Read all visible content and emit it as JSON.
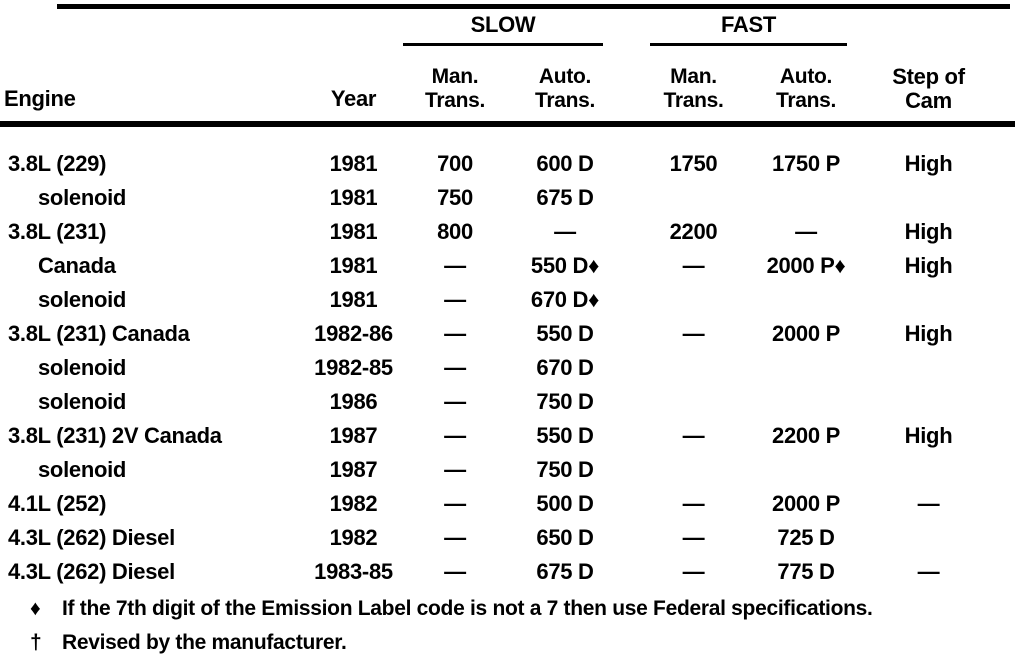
{
  "table": {
    "group_headers": {
      "slow": "SLOW",
      "fast": "FAST"
    },
    "columns": {
      "engine": "Engine",
      "year": "Year",
      "man_line1": "Man.",
      "man_line2": "Trans.",
      "auto_line1": "Auto.",
      "auto_line2": "Trans.",
      "cam_line1": "Step of",
      "cam_line2": "Cam"
    },
    "rows": [
      {
        "engine": "3.8L (229)",
        "indent": 0,
        "year": "1981",
        "slow_man": "700",
        "slow_auto": "600 D",
        "fast_man": "1750",
        "fast_auto": "1750 P",
        "cam": "High"
      },
      {
        "engine": "solenoid",
        "indent": 1,
        "year": "1981",
        "slow_man": "750",
        "slow_auto": "675 D",
        "fast_man": "",
        "fast_auto": "",
        "cam": ""
      },
      {
        "engine": "3.8L (231)",
        "indent": 0,
        "year": "1981",
        "slow_man": "800",
        "slow_auto": "—",
        "fast_man": "2200",
        "fast_auto": "—",
        "cam": "High"
      },
      {
        "engine": "Canada",
        "indent": 1,
        "year": "1981",
        "slow_man": "—",
        "slow_auto": "550 D♦",
        "fast_man": "—",
        "fast_auto": "2000 P♦",
        "cam": "High"
      },
      {
        "engine": "solenoid",
        "indent": 1,
        "year": "1981",
        "slow_man": "—",
        "slow_auto": "670 D♦",
        "fast_man": "",
        "fast_auto": "",
        "cam": ""
      },
      {
        "engine": "3.8L (231) Canada",
        "indent": 0,
        "year": "1982-86",
        "slow_man": "—",
        "slow_auto": "550 D",
        "fast_man": "—",
        "fast_auto": "2000 P",
        "cam": "High"
      },
      {
        "engine": "solenoid",
        "indent": 1,
        "year": "1982-85",
        "slow_man": "—",
        "slow_auto": "670 D",
        "fast_man": "",
        "fast_auto": "",
        "cam": ""
      },
      {
        "engine": "solenoid",
        "indent": 1,
        "year": "1986",
        "slow_man": "—",
        "slow_auto": "750 D",
        "fast_man": "",
        "fast_auto": "",
        "cam": ""
      },
      {
        "engine": "3.8L (231) 2V Canada",
        "indent": 0,
        "year": "1987",
        "slow_man": "—",
        "slow_auto": "550 D",
        "fast_man": "—",
        "fast_auto": "2200 P",
        "cam": "High"
      },
      {
        "engine": "solenoid",
        "indent": 1,
        "year": "1987",
        "slow_man": "—",
        "slow_auto": "750 D",
        "fast_man": "",
        "fast_auto": "",
        "cam": ""
      },
      {
        "engine": "4.1L (252)",
        "indent": 0,
        "year": "1982",
        "slow_man": "—",
        "slow_auto": "500 D",
        "fast_man": "—",
        "fast_auto": "2000 P",
        "cam": "—"
      },
      {
        "engine": "4.3L (262) Diesel",
        "indent": 0,
        "year": "1982",
        "slow_man": "—",
        "slow_auto": "650 D",
        "fast_man": "—",
        "fast_auto": "725 D",
        "cam": ""
      },
      {
        "engine": "4.3L (262) Diesel",
        "indent": 0,
        "year": "1983-85",
        "slow_man": "—",
        "slow_auto": "675 D",
        "fast_man": "—",
        "fast_auto": "775 D",
        "cam": "—"
      }
    ]
  },
  "footnotes": [
    {
      "symbol": "♦",
      "text": "If the 7th digit of the Emission Label code is not a 7 then use Federal specifications."
    },
    {
      "symbol": "†",
      "text": "Revised by the manufacturer."
    }
  ],
  "colors": {
    "ink": "#000000",
    "paper": "#ffffff"
  }
}
